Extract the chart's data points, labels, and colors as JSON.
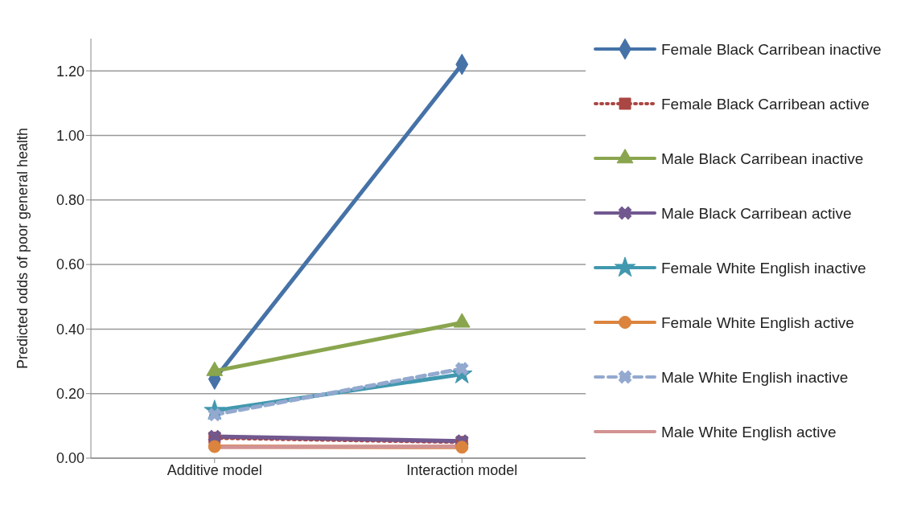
{
  "chart_data": {
    "type": "line",
    "ylabel": "Predicted odds of poor general health",
    "categories": [
      "Additive model",
      "Interaction model"
    ],
    "ylim": [
      0,
      1.3
    ],
    "yticks": [
      {
        "value": 0,
        "label": "0.00"
      },
      {
        "value": 0.2,
        "label": "0.20"
      },
      {
        "value": 0.4,
        "label": "0.40"
      },
      {
        "value": 0.6,
        "label": "0.60"
      },
      {
        "value": 0.8,
        "label": "0.80"
      },
      {
        "value": 1,
        "label": "1.00"
      },
      {
        "value": 1.2,
        "label": "1.20"
      }
    ],
    "grid": "y",
    "legend": "right",
    "series": [
      {
        "name": "Female Black Carribean inactive",
        "color": "#4572a7",
        "values": [
          0.245,
          1.22
        ],
        "marker": "diamond",
        "line_style": "solid"
      },
      {
        "name": "Female Black Carribean active",
        "color": "#aa4643",
        "values": [
          0.063,
          0.05
        ],
        "marker": "square",
        "line_style": "dotted"
      },
      {
        "name": "Male Black Carribean inactive",
        "color": "#89a54e",
        "values": [
          0.27,
          0.42
        ],
        "marker": "triangle",
        "line_style": "solid"
      },
      {
        "name": "Male Black Carribean active",
        "color": "#71588f",
        "values": [
          0.067,
          0.053
        ],
        "marker": "cross",
        "line_style": "solid"
      },
      {
        "name": "Female White English inactive",
        "color": "#4198af",
        "values": [
          0.147,
          0.26
        ],
        "marker": "star",
        "line_style": "solid"
      },
      {
        "name": "Female White English active",
        "color": "#db843d",
        "values": [
          0.036,
          0.034
        ],
        "marker": "circle",
        "line_style": "solid"
      },
      {
        "name": "Male White English inactive",
        "color": "#93a9cf",
        "values": [
          0.135,
          0.277
        ],
        "marker": "cross",
        "line_style": "dashed"
      },
      {
        "name": "Male White English active",
        "color": "#d19392",
        "values": [
          0.034,
          0.036
        ],
        "marker": "none",
        "line_style": "solid"
      }
    ]
  }
}
